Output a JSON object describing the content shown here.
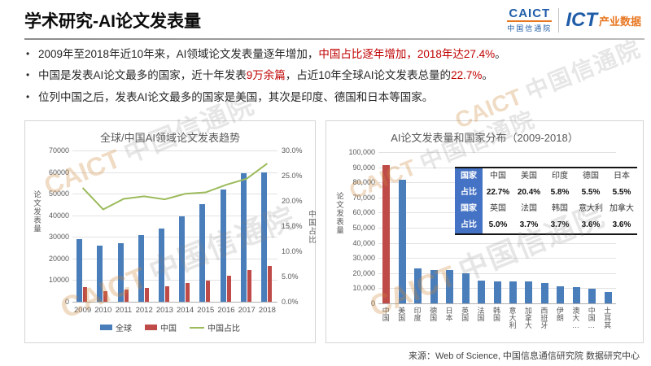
{
  "header": {
    "title": "学术研究-AI论文发表量",
    "logo": {
      "caict": "CAICT",
      "caict_cn": "中国信通院",
      "ict": "ICT",
      "ict_product": "产业数据"
    }
  },
  "bullets": [
    {
      "segments": [
        {
          "t": "2009年至2018年近10年来，AI领域论文发表量逐年增加，",
          "r": false
        },
        {
          "t": "中国占比逐年增加，2018年达27.4%",
          "r": true
        },
        {
          "t": "。",
          "r": false
        }
      ]
    },
    {
      "segments": [
        {
          "t": "中国是发表AI论文最多的国家，近十年发表",
          "r": false
        },
        {
          "t": "9万余篇",
          "r": true
        },
        {
          "t": "，占近10年全球AI论文发表总量的",
          "r": false
        },
        {
          "t": "22.7%",
          "r": true
        },
        {
          "t": "。",
          "r": false
        }
      ]
    },
    {
      "segments": [
        {
          "t": "位列中国之后，发表AI论文最多的国家是美国，其次是印度、德国和日本等国家。",
          "r": false
        }
      ]
    }
  ],
  "source": "来源：Web of Science, 中国信息通信研究院 数据研究中心",
  "watermark": {
    "en": "CAICT",
    "cn": "中国信通院"
  },
  "colors": {
    "global_bar": "#4A7EBB",
    "china_bar": "#BE4B48",
    "share_line": "#9CBB5C",
    "table_header": "#4472C4",
    "accent_red": "#C00000",
    "logo_blue": "#1F5CA8",
    "logo_orange": "#E87722"
  },
  "chart_data": [
    {
      "type": "bar+line",
      "title": "全球/中国AI领域论文发表趋势",
      "categories": [
        "2009",
        "2010",
        "2011",
        "2012",
        "2013",
        "2014",
        "2015",
        "2016",
        "2017",
        "2018"
      ],
      "series": [
        {
          "name": "全球",
          "kind": "bar",
          "color": "#4A7EBB",
          "values": [
            29000,
            26000,
            27000,
            31000,
            34000,
            39500,
            45000,
            52000,
            59500,
            60000
          ]
        },
        {
          "name": "中国",
          "kind": "bar",
          "color": "#BE4B48",
          "values": [
            6600,
            4800,
            5500,
            6500,
            7000,
            8500,
            9800,
            12000,
            14500,
            16500
          ]
        },
        {
          "name": "中国占比",
          "kind": "line",
          "color": "#9CBB5C",
          "axis": "right",
          "values": [
            22.6,
            18.3,
            20.4,
            20.9,
            20.3,
            21.4,
            21.7,
            23.2,
            24.4,
            27.4
          ]
        }
      ],
      "left_axis": {
        "label": "论文发表量",
        "min": 0,
        "max": 70000,
        "ticks": [
          "70000",
          "60000",
          "50000",
          "40000",
          "30000",
          "20000",
          "10000",
          "0"
        ]
      },
      "right_axis": {
        "label": "中国占比",
        "min": 0,
        "max": 30,
        "ticks": [
          "30.0%",
          "25.0%",
          "20.0%",
          "15.0%",
          "10.0%",
          "5.0%",
          "0.0%"
        ]
      },
      "legend_position": "bottom"
    },
    {
      "type": "bar",
      "title": "AI论文发表量和国家分布（2009-2018）",
      "categories": [
        "中国",
        "美国",
        "印度",
        "德国",
        "日本",
        "英国",
        "法国",
        "韩国",
        "意大利",
        "加拿大",
        "西班牙",
        "伊朗",
        "澳大…",
        "中国…",
        "土耳其"
      ],
      "values": [
        91300,
        81700,
        23200,
        22000,
        21900,
        19900,
        14800,
        14700,
        14500,
        14400,
        13500,
        11200,
        10500,
        9500,
        7500
      ],
      "bar_color": "#4A7EBB",
      "highlight_index": 0,
      "highlight_color": "#BE4B48",
      "y_axis": {
        "label": "论文发表量",
        "min": 0,
        "max": 100000,
        "ticks": [
          "100,000",
          "90,000",
          "80,000",
          "70,000",
          "60,000",
          "50,000",
          "40,000",
          "30,000",
          "20,000",
          "10,000",
          "0"
        ]
      },
      "inset_table": {
        "rows": [
          {
            "label": "国家",
            "cells": [
              "中国",
              "美国",
              "印度",
              "德国",
              "日本"
            ],
            "bold": false
          },
          {
            "label": "占比",
            "cells": [
              "22.7%",
              "20.4%",
              "5.8%",
              "5.5%",
              "5.5%"
            ],
            "bold": true
          },
          {
            "label": "国家",
            "cells": [
              "英国",
              "法国",
              "韩国",
              "意大利",
              "加拿大"
            ],
            "bold": false
          },
          {
            "label": "占比",
            "cells": [
              "5.0%",
              "3.7%",
              "3.7%",
              "3.6%",
              "3.6%"
            ],
            "bold": true
          }
        ]
      }
    }
  ]
}
